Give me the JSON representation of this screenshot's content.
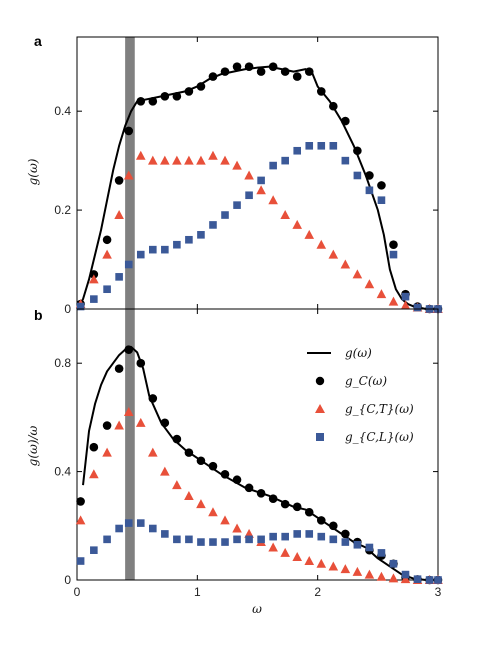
{
  "colors": {
    "total": "#000000",
    "gC": "#000000",
    "gCT": "#e8503a",
    "gCL": "#3b5998",
    "band": "#808080"
  },
  "panels": {
    "a": {
      "letter": "a",
      "ylabel": "g(ω)"
    },
    "b": {
      "letter": "b",
      "ylabel": "g(ω)/ω",
      "xlabel": "ω"
    }
  },
  "legend": {
    "total": "g(ω)",
    "gC": "g_C(ω)",
    "gCT": "g_{C,T}(ω)",
    "gCL": "g_{C,L}(ω)"
  },
  "chart_data": [
    {
      "panel": "a",
      "type": "scatter",
      "title": "",
      "xlabel": "",
      "ylabel": "g(ω)",
      "xlim": [
        0,
        3
      ],
      "ylim": [
        0,
        0.55
      ],
      "xticks": [
        0,
        1,
        2,
        3
      ],
      "yticks": [
        0,
        0.2,
        0.4
      ],
      "ytick_labels": [
        "0",
        "0.2",
        "0.4"
      ],
      "xtick_labels": [],
      "band": [
        0.4,
        0.48
      ],
      "line": {
        "name": "g(ω)",
        "x": [
          0.0,
          0.05,
          0.1,
          0.15,
          0.2,
          0.25,
          0.3,
          0.35,
          0.4,
          0.45,
          0.5,
          0.6,
          0.7,
          0.8,
          0.9,
          1.0,
          1.1,
          1.2,
          1.3,
          1.4,
          1.5,
          1.6,
          1.7,
          1.8,
          1.9,
          1.95,
          2.0,
          2.1,
          2.2,
          2.3,
          2.4,
          2.5,
          2.55,
          2.6,
          2.65,
          2.7,
          2.75,
          2.8,
          2.9,
          3.0
        ],
        "y": [
          0.0,
          0.02,
          0.06,
          0.11,
          0.16,
          0.22,
          0.28,
          0.33,
          0.37,
          0.4,
          0.42,
          0.425,
          0.43,
          0.435,
          0.44,
          0.45,
          0.465,
          0.475,
          0.48,
          0.485,
          0.488,
          0.49,
          0.485,
          0.48,
          0.485,
          0.48,
          0.45,
          0.42,
          0.38,
          0.33,
          0.27,
          0.2,
          0.15,
          0.08,
          0.04,
          0.02,
          0.01,
          0.005,
          0.0,
          0.0
        ]
      },
      "series": [
        {
          "name": "g_C(ω)",
          "marker": "circle",
          "x": [
            0.03,
            0.14,
            0.25,
            0.35,
            0.43,
            0.53,
            0.63,
            0.73,
            0.83,
            0.93,
            1.03,
            1.13,
            1.23,
            1.33,
            1.43,
            1.53,
            1.63,
            1.73,
            1.83,
            1.93,
            2.03,
            2.13,
            2.23,
            2.33,
            2.43,
            2.53,
            2.63,
            2.73,
            2.83,
            2.93,
            3.0
          ],
          "y": [
            0.01,
            0.07,
            0.14,
            0.26,
            0.36,
            0.42,
            0.42,
            0.43,
            0.43,
            0.44,
            0.45,
            0.47,
            0.48,
            0.49,
            0.49,
            0.48,
            0.49,
            0.48,
            0.47,
            0.48,
            0.44,
            0.41,
            0.38,
            0.32,
            0.27,
            0.25,
            0.13,
            0.03,
            0.005,
            0.0,
            0.0
          ]
        },
        {
          "name": "g_{C,T}(ω)",
          "marker": "triangle",
          "x": [
            0.03,
            0.14,
            0.25,
            0.35,
            0.43,
            0.53,
            0.63,
            0.73,
            0.83,
            0.93,
            1.03,
            1.13,
            1.23,
            1.33,
            1.43,
            1.53,
            1.63,
            1.73,
            1.83,
            1.93,
            2.03,
            2.13,
            2.23,
            2.33,
            2.43,
            2.53,
            2.63,
            2.73,
            2.83,
            2.93,
            3.0
          ],
          "y": [
            0.01,
            0.06,
            0.11,
            0.19,
            0.27,
            0.31,
            0.3,
            0.3,
            0.3,
            0.3,
            0.3,
            0.31,
            0.3,
            0.29,
            0.27,
            0.24,
            0.22,
            0.19,
            0.17,
            0.15,
            0.13,
            0.11,
            0.09,
            0.07,
            0.05,
            0.03,
            0.015,
            0.007,
            0.003,
            0.0,
            0.0
          ]
        },
        {
          "name": "g_{C,L}(ω)",
          "marker": "square",
          "x": [
            0.03,
            0.14,
            0.25,
            0.35,
            0.43,
            0.53,
            0.63,
            0.73,
            0.83,
            0.93,
            1.03,
            1.13,
            1.23,
            1.33,
            1.43,
            1.53,
            1.63,
            1.73,
            1.83,
            1.93,
            2.03,
            2.13,
            2.23,
            2.33,
            2.43,
            2.53,
            2.63,
            2.73,
            2.83,
            2.93,
            3.0
          ],
          "y": [
            0.005,
            0.02,
            0.04,
            0.065,
            0.09,
            0.11,
            0.12,
            0.12,
            0.13,
            0.14,
            0.15,
            0.17,
            0.19,
            0.21,
            0.23,
            0.26,
            0.29,
            0.3,
            0.32,
            0.33,
            0.33,
            0.33,
            0.3,
            0.27,
            0.24,
            0.22,
            0.11,
            0.025,
            0.003,
            0.0,
            0.0
          ]
        }
      ]
    },
    {
      "panel": "b",
      "type": "scatter",
      "title": "",
      "xlabel": "ω",
      "ylabel": "g(ω)/ω",
      "xlim": [
        0,
        3
      ],
      "ylim": [
        0,
        1.0
      ],
      "xticks": [
        0,
        1,
        2,
        3
      ],
      "xtick_labels": [
        "0",
        "1",
        "2",
        "3"
      ],
      "yticks": [
        0,
        0.4,
        0.8
      ],
      "ytick_labels": [
        "0",
        "0.4",
        "0.8"
      ],
      "band": [
        0.4,
        0.48
      ],
      "line": {
        "name": "g(ω)",
        "x": [
          0.05,
          0.1,
          0.15,
          0.2,
          0.25,
          0.3,
          0.35,
          0.4,
          0.45,
          0.5,
          0.55,
          0.6,
          0.7,
          0.8,
          0.9,
          1.0,
          1.2,
          1.4,
          1.6,
          1.8,
          1.9,
          2.0,
          2.1,
          2.2,
          2.3,
          2.4,
          2.5,
          2.6,
          2.7,
          2.8,
          2.9,
          3.0
        ],
        "y": [
          0.35,
          0.55,
          0.65,
          0.72,
          0.77,
          0.8,
          0.83,
          0.85,
          0.86,
          0.84,
          0.78,
          0.68,
          0.58,
          0.52,
          0.48,
          0.45,
          0.39,
          0.34,
          0.31,
          0.27,
          0.26,
          0.23,
          0.2,
          0.17,
          0.14,
          0.12,
          0.08,
          0.05,
          0.02,
          0.005,
          0.0,
          0.0
        ]
      },
      "series": [
        {
          "name": "g_C(ω)",
          "marker": "circle",
          "x": [
            0.03,
            0.14,
            0.25,
            0.35,
            0.43,
            0.53,
            0.63,
            0.73,
            0.83,
            0.93,
            1.03,
            1.13,
            1.23,
            1.33,
            1.43,
            1.53,
            1.63,
            1.73,
            1.83,
            1.93,
            2.03,
            2.13,
            2.23,
            2.33,
            2.43,
            2.53,
            2.63,
            2.73,
            2.83,
            2.93,
            3.0
          ],
          "y": [
            0.29,
            0.49,
            0.57,
            0.78,
            0.85,
            0.8,
            0.67,
            0.58,
            0.52,
            0.47,
            0.44,
            0.42,
            0.39,
            0.37,
            0.34,
            0.32,
            0.3,
            0.28,
            0.27,
            0.25,
            0.22,
            0.2,
            0.17,
            0.14,
            0.11,
            0.09,
            0.06,
            0.01,
            0.002,
            0.0,
            0.0
          ]
        },
        {
          "name": "g_{C,T}(ω)",
          "marker": "triangle",
          "x": [
            0.03,
            0.14,
            0.25,
            0.35,
            0.43,
            0.53,
            0.63,
            0.73,
            0.83,
            0.93,
            1.03,
            1.13,
            1.23,
            1.33,
            1.43,
            1.53,
            1.63,
            1.73,
            1.83,
            1.93,
            2.03,
            2.13,
            2.23,
            2.33,
            2.43,
            2.53,
            2.63,
            2.73,
            2.83,
            2.93,
            3.0
          ],
          "y": [
            0.22,
            0.39,
            0.47,
            0.57,
            0.62,
            0.58,
            0.47,
            0.4,
            0.35,
            0.31,
            0.28,
            0.25,
            0.22,
            0.19,
            0.17,
            0.14,
            0.12,
            0.1,
            0.085,
            0.07,
            0.06,
            0.05,
            0.04,
            0.03,
            0.02,
            0.012,
            0.006,
            0.003,
            0.0,
            0.0,
            0.0
          ]
        },
        {
          "name": "g_{C,L}(ω)",
          "marker": "square",
          "x": [
            0.03,
            0.14,
            0.25,
            0.35,
            0.43,
            0.53,
            0.63,
            0.73,
            0.83,
            0.93,
            1.03,
            1.13,
            1.23,
            1.33,
            1.43,
            1.53,
            1.63,
            1.73,
            1.83,
            1.93,
            2.03,
            2.13,
            2.23,
            2.33,
            2.43,
            2.53,
            2.63,
            2.73,
            2.83,
            2.93,
            3.0
          ],
          "y": [
            0.07,
            0.11,
            0.15,
            0.19,
            0.21,
            0.21,
            0.19,
            0.17,
            0.15,
            0.15,
            0.14,
            0.14,
            0.14,
            0.15,
            0.15,
            0.15,
            0.16,
            0.16,
            0.17,
            0.17,
            0.16,
            0.15,
            0.14,
            0.13,
            0.12,
            0.1,
            0.06,
            0.02,
            0.003,
            0.0,
            0.0
          ]
        }
      ]
    }
  ]
}
